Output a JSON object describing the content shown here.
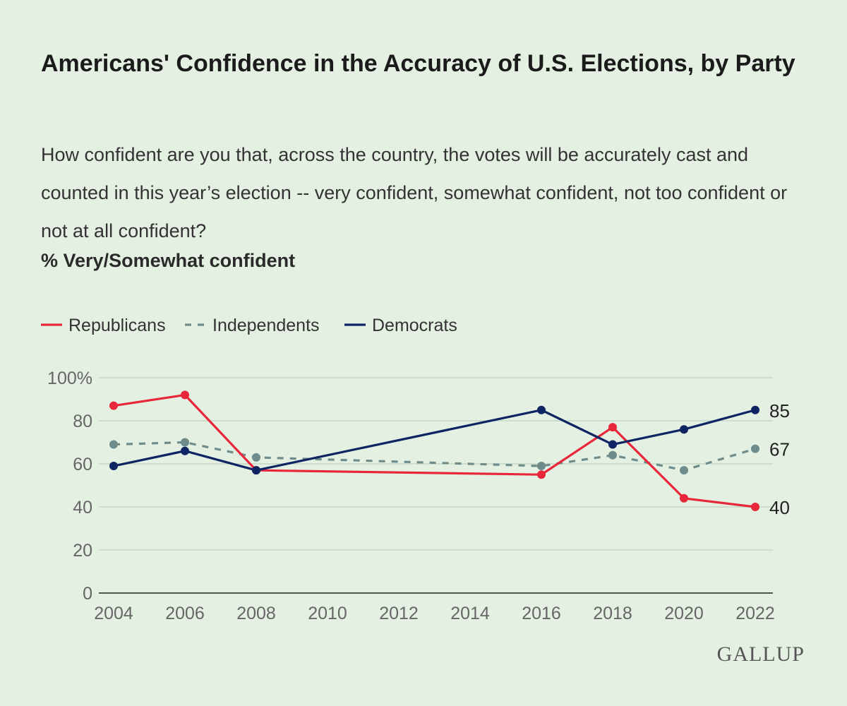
{
  "chart_data": {
    "type": "line",
    "title": "Americans' Confidence in the Accuracy of U.S. Elections, by Party",
    "subtitle": "How confident are you that, across the country, the votes will be accurately cast and counted in this year’s election -- very confident, somewhat confident, not too confident or not at all confident?",
    "unit_label": "% Very/Somewhat confident",
    "x_ticks": [
      "2004",
      "2006",
      "2008",
      "2010",
      "2012",
      "2014",
      "2016",
      "2018",
      "2020",
      "2022"
    ],
    "y_ticks": [
      "100%",
      "80",
      "60",
      "40",
      "20",
      "0"
    ],
    "ylim": [
      0,
      100
    ],
    "series": [
      {
        "name": "Republicans",
        "color": "#e8273b",
        "dashed": false,
        "points": [
          [
            2004,
            87
          ],
          [
            2006,
            92
          ],
          [
            2008,
            57
          ],
          [
            2016,
            55
          ],
          [
            2018,
            77
          ],
          [
            2020,
            44
          ],
          [
            2022,
            40
          ]
        ],
        "end_label": "40"
      },
      {
        "name": "Independents",
        "color": "#6f8c8c",
        "dashed": true,
        "points": [
          [
            2004,
            69
          ],
          [
            2006,
            70
          ],
          [
            2008,
            63
          ],
          [
            2016,
            59
          ],
          [
            2018,
            64
          ],
          [
            2020,
            57
          ],
          [
            2022,
            67
          ]
        ],
        "end_label": "67"
      },
      {
        "name": "Democrats",
        "color": "#0e2463",
        "dashed": false,
        "points": [
          [
            2004,
            59
          ],
          [
            2006,
            66
          ],
          [
            2008,
            57
          ],
          [
            2016,
            85
          ],
          [
            2018,
            69
          ],
          [
            2020,
            76
          ],
          [
            2022,
            85
          ]
        ],
        "end_label": "85"
      }
    ]
  },
  "branding": {
    "logo_text": "GALLUP"
  }
}
